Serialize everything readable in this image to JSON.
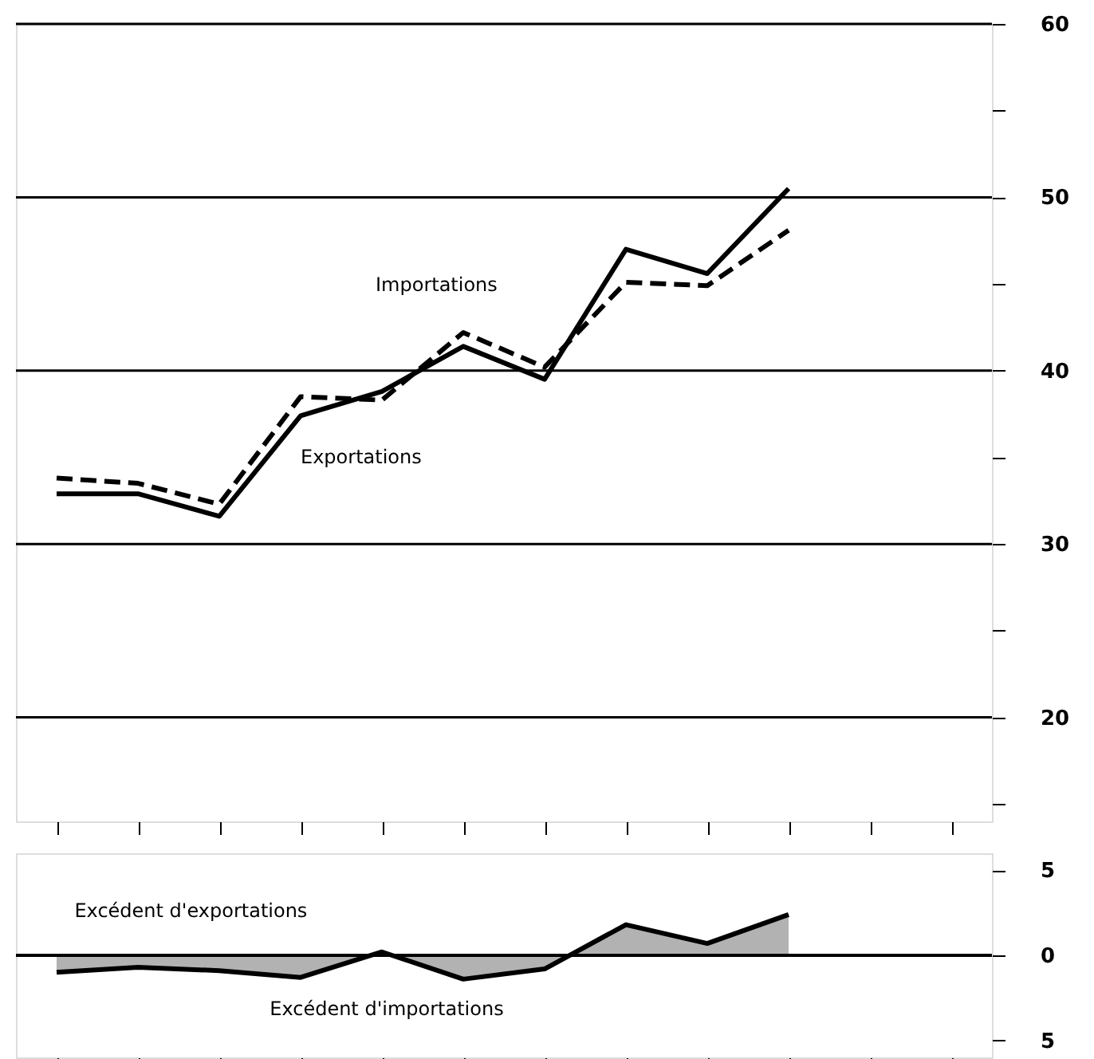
{
  "chart_data": [
    {
      "type": "line",
      "categories": [
        null,
        null,
        null,
        null,
        null,
        null,
        null,
        null,
        null,
        null,
        null,
        null
      ],
      "ylim": [
        14,
        60
      ],
      "yticks": [
        {
          "value": 15,
          "label": null
        },
        20,
        {
          "value": 25,
          "label": null
        },
        30,
        {
          "value": 35,
          "label": null
        },
        40,
        {
          "value": 45,
          "label": null
        },
        50,
        {
          "value": 55,
          "label": null
        },
        60
      ],
      "grid": "y",
      "tick_labels": "y",
      "series": [
        {
          "name": "Exportations",
          "color": "#000000",
          "line_style": "solid",
          "values": [
            32.9,
            32.9,
            31.6,
            37.4,
            38.8,
            41.4,
            39.5,
            47.0,
            45.6,
            50.5,
            null,
            null
          ]
        },
        {
          "name": "Importations",
          "color": "#000000",
          "line_style": "dashed",
          "values": [
            33.8,
            33.5,
            32.3,
            38.5,
            38.3,
            42.2,
            40.2,
            45.1,
            44.9,
            48.1,
            null,
            null
          ]
        }
      ]
    },
    {
      "type": "area",
      "categories": [
        null,
        null,
        null,
        null,
        null,
        null,
        null,
        null,
        null,
        null,
        null,
        null
      ],
      "ylim": [
        -6,
        6
      ],
      "yticks": [
        {
          "value": -5,
          "label": "5"
        },
        0,
        5
      ],
      "tick_labels": "y",
      "ref_lines": [
        {
          "axis": "y",
          "value": 0,
          "label": null
        }
      ],
      "annotations": [
        "Excédent d'exportations",
        "Excédent d'importations"
      ],
      "series": [
        {
          "color": "#000000",
          "values": [
            -1.0,
            -0.7,
            -0.9,
            -1.3,
            0.2,
            -1.4,
            -0.8,
            1.8,
            0.7,
            2.4,
            null,
            null
          ]
        }
      ]
    }
  ]
}
